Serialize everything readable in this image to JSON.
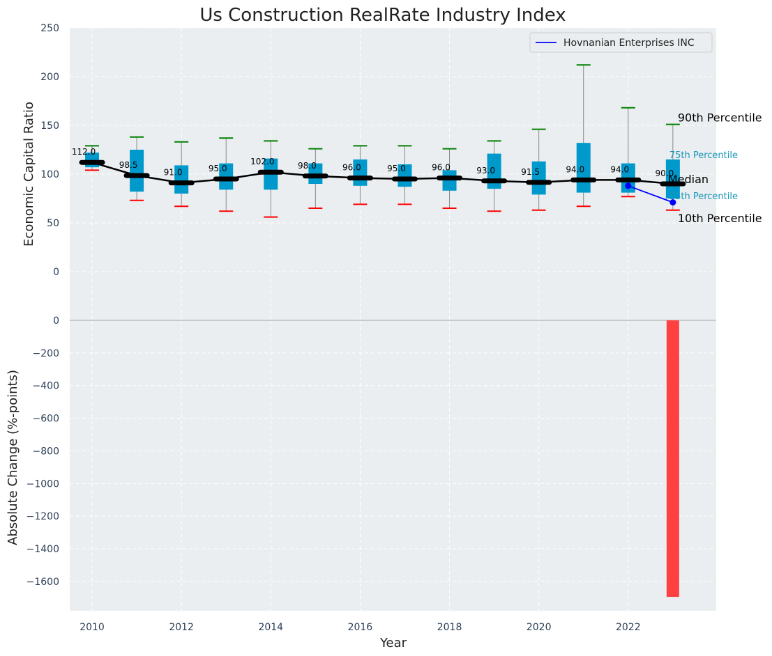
{
  "chart_data": {
    "type": "box",
    "title": "Us Construction RealRate Industry Index",
    "xlabel": "Year",
    "colors": {
      "background": "#eaeef0",
      "box": "#0099cc",
      "whisker": "#888888",
      "cap_high": "#008000",
      "cap_low": "#ff0000",
      "median_line": "#000000",
      "company": "#0000ff",
      "change_bar": "#ff4040",
      "side_label_small": "#1797b9"
    },
    "top_panel": {
      "ylabel": "Economic Capital Ratio",
      "ylim": [
        -50,
        250
      ],
      "yticks": [
        0,
        50,
        100,
        150,
        200,
        250
      ],
      "grid": true,
      "legend_position": "top-right",
      "legend": [
        "Hovnanian Enterprises INC"
      ],
      "boxes": [
        {
          "year": 2010,
          "p10": 104,
          "q1": 107,
          "median": 112,
          "q3": 122,
          "p90": 129,
          "label": "112.0"
        },
        {
          "year": 2011,
          "p10": 73,
          "q1": 82,
          "median": 98.5,
          "q3": 125,
          "p90": 138,
          "label": "98.5"
        },
        {
          "year": 2012,
          "p10": 67,
          "q1": 80,
          "median": 91,
          "q3": 109,
          "p90": 133,
          "label": "91.0"
        },
        {
          "year": 2013,
          "p10": 62,
          "q1": 84,
          "median": 95,
          "q3": 111,
          "p90": 137,
          "label": "95.0"
        },
        {
          "year": 2014,
          "p10": 56,
          "q1": 84,
          "median": 102,
          "q3": 116,
          "p90": 134,
          "label": "102.0"
        },
        {
          "year": 2015,
          "p10": 65,
          "q1": 90,
          "median": 98,
          "q3": 111,
          "p90": 126,
          "label": "98.0"
        },
        {
          "year": 2016,
          "p10": 69,
          "q1": 88,
          "median": 96,
          "q3": 115,
          "p90": 129,
          "label": "96.0"
        },
        {
          "year": 2017,
          "p10": 69,
          "q1": 87,
          "median": 95,
          "q3": 110,
          "p90": 129,
          "label": "95.0"
        },
        {
          "year": 2018,
          "p10": 65,
          "q1": 83,
          "median": 96,
          "q3": 104,
          "p90": 126,
          "label": "96.0"
        },
        {
          "year": 2019,
          "p10": 62,
          "q1": 85,
          "median": 93,
          "q3": 121,
          "p90": 134,
          "label": "93.0"
        },
        {
          "year": 2020,
          "p10": 63,
          "q1": 79,
          "median": 91.5,
          "q3": 113,
          "p90": 146,
          "label": "91.5"
        },
        {
          "year": 2021,
          "p10": 67,
          "q1": 81,
          "median": 94,
          "q3": 132,
          "p90": 212,
          "label": "94.0"
        },
        {
          "year": 2022,
          "p10": 77,
          "q1": 81,
          "median": 94,
          "q3": 111,
          "p90": 168,
          "label": "94.0"
        },
        {
          "year": 2023,
          "p10": 63,
          "q1": 75,
          "median": 90,
          "q3": 115,
          "p90": 151,
          "label": "90.0"
        }
      ],
      "company_series": {
        "name": "Hovnanian Enterprises INC",
        "x": [
          2022,
          2023
        ],
        "y": [
          88,
          71
        ]
      },
      "side_labels": {
        "p90": "90th Percentile",
        "q3": "75th Percentile",
        "median": "Median",
        "q1": "25th Percentile",
        "p10": "10th Percentile"
      }
    },
    "bottom_panel": {
      "ylabel": "Absolute Change (%-points)",
      "ylim": [
        -1780,
        0
      ],
      "yticks": [
        0,
        -200,
        -400,
        -600,
        -800,
        -1000,
        -1200,
        -1400,
        -1600
      ],
      "grid": true,
      "bars": [
        {
          "year": 2023,
          "value": -1695
        }
      ]
    },
    "xticks": [
      2010,
      2012,
      2014,
      2016,
      2018,
      2020,
      2022
    ],
    "xlim": [
      2009.5,
      2023.97
    ]
  }
}
